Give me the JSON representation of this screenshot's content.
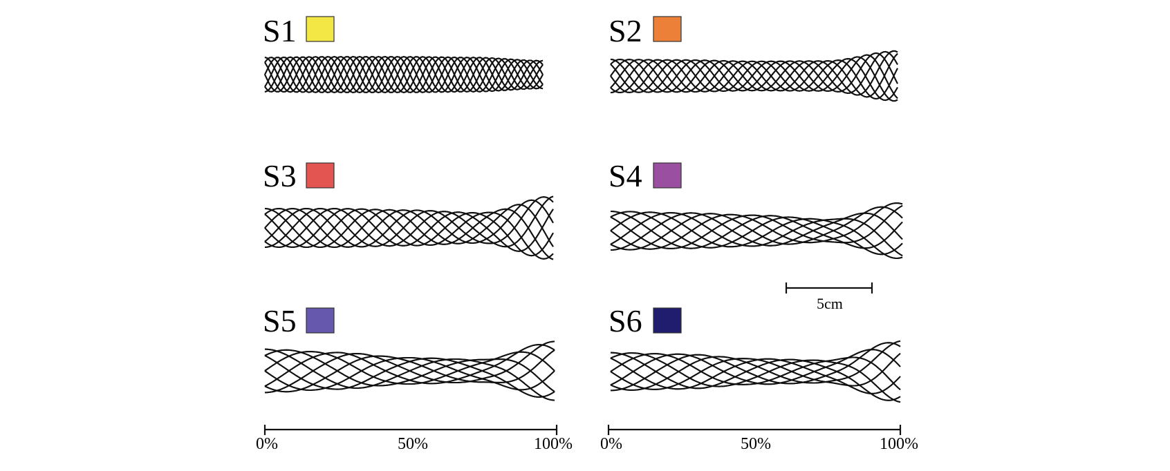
{
  "panels": [
    {
      "id": "S1",
      "label": "S1",
      "color": "#f3e745",
      "profile": [
        0.96,
        1.0,
        1.0,
        0.96,
        0.78
      ]
    },
    {
      "id": "S2",
      "label": "S2",
      "color": "#ec8038",
      "profile": [
        0.86,
        0.83,
        0.76,
        0.78,
        1.3
      ]
    },
    {
      "id": "S3",
      "label": "S3",
      "color": "#e25550",
      "profile": [
        1.0,
        1.0,
        0.92,
        0.78,
        1.65
      ]
    },
    {
      "id": "S4",
      "label": "S4",
      "color": "#9a4fa1",
      "profile": [
        1.0,
        0.92,
        0.8,
        0.58,
        1.45
      ]
    },
    {
      "id": "S5",
      "label": "S5",
      "color": "#6558ad",
      "profile": [
        1.12,
        0.95,
        0.68,
        0.58,
        1.52
      ]
    },
    {
      "id": "S6",
      "label": "S6",
      "color": "#201d6e",
      "profile": [
        0.98,
        0.9,
        0.66,
        0.58,
        1.6
      ]
    }
  ],
  "axes": {
    "ticks": [
      "0%",
      "50%",
      "100%"
    ]
  },
  "scale_bar": {
    "label": "5cm"
  }
}
